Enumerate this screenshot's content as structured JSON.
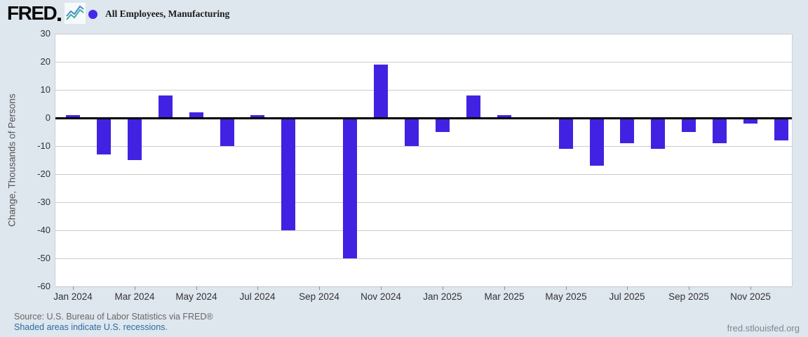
{
  "header": {
    "logo_text": "FRED"
  },
  "footer": {
    "source": "Source: U.S. Bureau of Labor Statistics via FRED®",
    "recession_note": "Shaded areas indicate U.S. recessions.",
    "site": "fred.stlouisfed.org"
  },
  "colors": {
    "background": "#dee6ee",
    "plot_background": "#ffffff",
    "bar": "#4222e2",
    "legend_dot": "#4527e8",
    "gridline": "#cccccc",
    "zero_line": "#000000",
    "link": "#2b6ca3"
  },
  "chart_data": {
    "type": "bar",
    "title": "All Employees, Manufacturing",
    "ylabel": "Change, Thousands of Persons",
    "xlabel": "",
    "ylim": [
      -60,
      30
    ],
    "ytick_interval": 10,
    "ytick_labels": [
      "30",
      "20",
      "10",
      "0",
      "-10",
      "-20",
      "-30",
      "-40",
      "-50",
      "-60"
    ],
    "grid": true,
    "legend_position": "top-left",
    "bar_color": "#4222e2",
    "categories": [
      "Jan 2024",
      "Feb 2024",
      "Mar 2024",
      "Apr 2024",
      "May 2024",
      "Jun 2024",
      "Jul 2024",
      "Aug 2024",
      "Sep 2024",
      "Oct 2024",
      "Nov 2024",
      "Dec 2024",
      "Jan 2025",
      "Feb 2025",
      "Mar 2025",
      "Apr 2025",
      "May 2025",
      "Jun 2025",
      "Jul 2025",
      "Aug 2025",
      "Sep 2025",
      "Oct 2025",
      "Nov 2025",
      "Dec 2025"
    ],
    "values": [
      1,
      -13,
      -15,
      8,
      2,
      -10,
      1,
      -40,
      0,
      -50,
      19,
      -10,
      -5,
      8,
      1,
      0,
      -11,
      -17,
      -9,
      -11,
      -5,
      -9,
      -2,
      -8
    ],
    "xtick_label_months": [
      "Jan 2024",
      "Mar 2024",
      "May 2024",
      "Jul 2024",
      "Sep 2024",
      "Nov 2024",
      "Jan 2025",
      "Mar 2025",
      "May 2025",
      "Jul 2025",
      "Sep 2025",
      "Nov 2025"
    ]
  }
}
